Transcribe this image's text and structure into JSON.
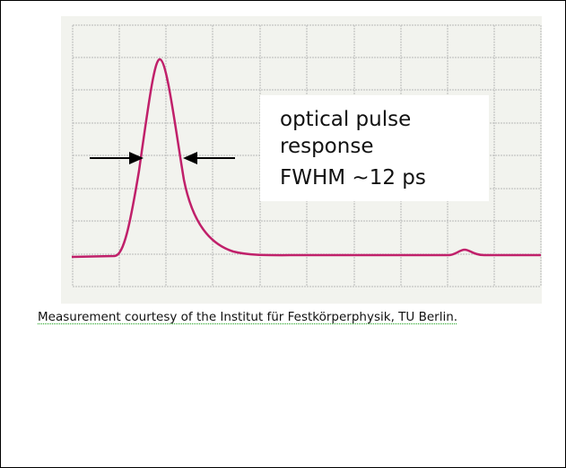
{
  "annotation": {
    "lines": [
      "optical pulse",
      "response",
      "FWHM ~12 ps"
    ]
  },
  "caption": "Measurement courtesy of the Institut für Festkörperphysik, TU Berlin."
}
